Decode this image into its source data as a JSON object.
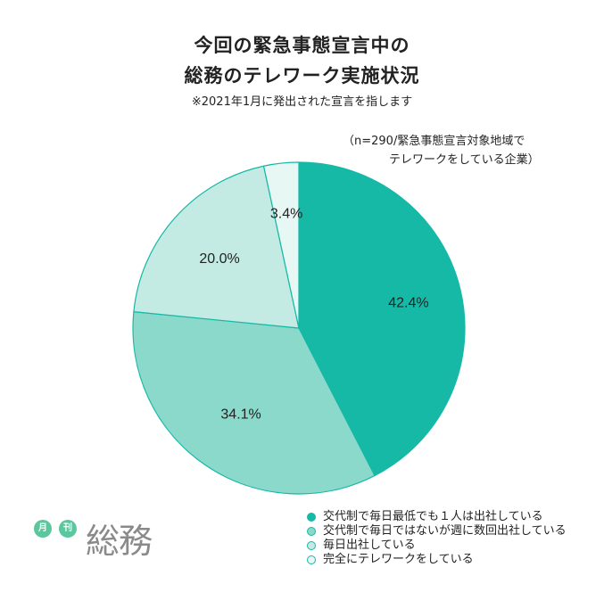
{
  "title_lines": [
    "今回の緊急事態宣言中の",
    "総務のテレワーク実施状況"
  ],
  "subtitle": "※2021年1月に発出された宣言を指します",
  "note_lines": [
    "（n=290/緊急事態宣言対象地域で",
    "テレワークをしている企業）"
  ],
  "logo": {
    "badge1": "月",
    "badge2": "刊",
    "main": "総務",
    "badge_color": "#5cc79f",
    "text_color": "#8a8a8a"
  },
  "chart_data": {
    "type": "pie",
    "title": "今回の緊急事態宣言中の総務のテレワーク実施状況",
    "start_angle": "12 o'clock",
    "direction": "clockwise",
    "legend_placement": "bottom-right",
    "slices": [
      {
        "label": "交代制で毎日最低でも１人は出社している",
        "value": 42.4,
        "display": "42.4%",
        "color": "#16b8a6"
      },
      {
        "label": "交代制で毎日ではないが週に数回出社している",
        "value": 34.1,
        "display": "34.1%",
        "color": "#8ad9cb"
      },
      {
        "label": "毎日出社している",
        "value": 20.0,
        "display": "20.0%",
        "color": "#c3ebe3"
      },
      {
        "label": "完全にテレワークをしている",
        "value": 3.4,
        "display": "3.4%",
        "color": "#e6f7f4"
      }
    ],
    "border_color": "#16b8a6"
  }
}
